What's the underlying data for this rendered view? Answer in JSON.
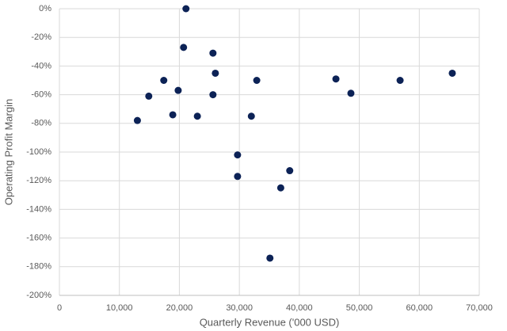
{
  "chart_data": {
    "type": "scatter",
    "x_label": "Quarterly Revenue ('000 USD)",
    "y_label": "Operating Profit Margin",
    "x": [
      21100,
      20700,
      25600,
      17400,
      26000,
      32900,
      46100,
      56800,
      65500,
      48600,
      19800,
      14900,
      25600,
      18900,
      23000,
      32000,
      13000,
      29700,
      29700,
      38400,
      36900,
      35100
    ],
    "values": [
      0,
      -27,
      -31,
      -50,
      -45,
      -50,
      -49,
      -50,
      -45,
      -59,
      -57,
      -61,
      -60,
      -74,
      -75,
      -75,
      -78,
      -102,
      -117,
      -113,
      -125,
      -174
    ],
    "color": "#0c2256",
    "xlim": [
      0,
      70000
    ],
    "xticks": [
      0,
      {
        "value": 10000,
        "label": "10,000"
      },
      {
        "value": 20000,
        "label": "20,000"
      },
      {
        "value": 30000,
        "label": "30,000"
      },
      {
        "value": 40000,
        "label": "40,000"
      },
      {
        "value": 50000,
        "label": "50,000"
      },
      {
        "value": 60000,
        "label": "60,000"
      },
      {
        "value": 70000,
        "label": "70,000"
      }
    ],
    "ylim": [
      -200,
      0
    ],
    "yticks": [
      {
        "value": 0,
        "label": "0%"
      },
      {
        "value": -20,
        "label": "-20%"
      },
      {
        "value": -40,
        "label": "-40%"
      },
      {
        "value": -60,
        "label": "-60%"
      },
      {
        "value": -80,
        "label": "-80%"
      },
      {
        "value": -100,
        "label": "-100%"
      },
      {
        "value": -120,
        "label": "-120%"
      },
      {
        "value": -140,
        "label": "-140%"
      },
      {
        "value": -160,
        "label": "-160%"
      },
      {
        "value": -180,
        "label": "-180%"
      },
      {
        "value": -200,
        "label": "-200%"
      }
    ],
    "grid": true
  }
}
